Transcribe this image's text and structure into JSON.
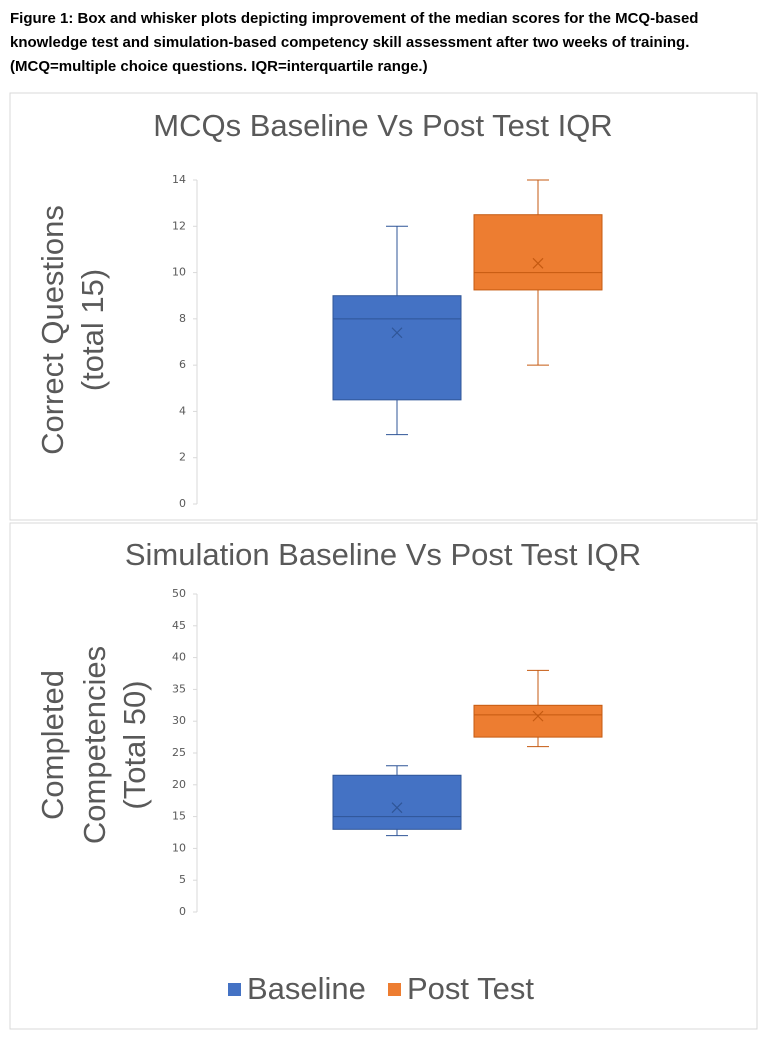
{
  "caption": [
    "Figure 1: Box and whisker plots depicting improvement of the median scores for the MCQ-based",
    "knowledge test and simulation-based competency skill assessment after two weeks of training.",
    "(MCQ=multiple choice questions. IQR=interquartile range.)"
  ],
  "chart_data": [
    {
      "type": "box",
      "title": "MCQs Baseline Vs Post Test IQR",
      "y_label": [
        "Correct Questions",
        "(total 15)"
      ],
      "ylim": [
        0,
        14
      ],
      "yticks": [
        0,
        2,
        4,
        6,
        8,
        10,
        12,
        14
      ],
      "series": [
        {
          "color": "#4472c4",
          "values": {
            "min": 3,
            "q1": 4.5,
            "median": 8,
            "q3": 9,
            "max": 12,
            "mean": 7.4
          }
        },
        {
          "color": "#ed7d31",
          "values": {
            "min": 6,
            "q1": 9.25,
            "median": 10,
            "q3": 12.5,
            "max": 14,
            "mean": 10.4
          }
        }
      ]
    },
    {
      "type": "box",
      "title": "Simulation Baseline Vs Post Test IQR",
      "y_label": [
        "Completed",
        "Competencies",
        "(Total 50)"
      ],
      "ylim": [
        0,
        50
      ],
      "yticks": [
        0,
        5,
        10,
        15,
        20,
        25,
        30,
        35,
        40,
        45,
        50
      ],
      "series": [
        {
          "name": "Baseline",
          "color": "#4472c4",
          "values": {
            "min": 12,
            "q1": 13,
            "median": 15,
            "q3": 21.5,
            "max": 23,
            "mean": 16.4
          }
        },
        {
          "name": "Post Test",
          "color": "#ed7d31",
          "values": {
            "min": 26,
            "q1": 27.5,
            "median": 31,
            "q3": 32.5,
            "max": 38,
            "mean": 30.8
          }
        }
      ]
    }
  ]
}
